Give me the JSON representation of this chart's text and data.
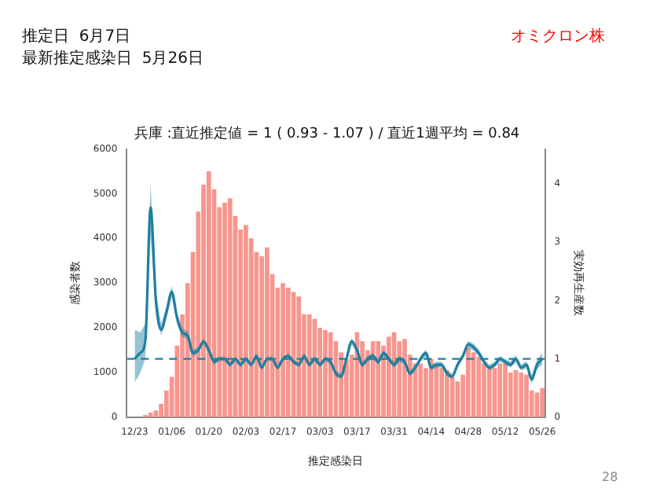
{
  "chart_data": {
    "type": "bar",
    "title": "兵庫 :直近推定値 = 1 ( 0.93 - 1.07 ) / 直近1週平均 = 0.84",
    "xlabel": "推定感染日",
    "ylabel": "感染者数",
    "y2label": "実効再生産数",
    "annotations": [
      "推定日  6月7日",
      "最新推定感染日  5月26日",
      "オミクロン株",
      "28"
    ],
    "categories": [
      null,
      "12/23",
      null,
      null,
      null,
      null,
      null,
      null,
      "01/06",
      null,
      null,
      null,
      null,
      null,
      null,
      "01/20",
      null,
      null,
      null,
      null,
      null,
      null,
      "02/03",
      null,
      null,
      null,
      null,
      null,
      null,
      "02/17",
      null,
      null,
      null,
      null,
      null,
      null,
      "03/03",
      null,
      null,
      null,
      null,
      null,
      null,
      "03/17",
      null,
      null,
      null,
      null,
      null,
      null,
      "03/31",
      null,
      null,
      null,
      null,
      null,
      null,
      "04/14",
      null,
      null,
      null,
      null,
      null,
      null,
      "04/28",
      null,
      null,
      null,
      null,
      null,
      null,
      "05/12",
      null,
      null,
      null,
      null,
      null,
      null,
      "05/26"
    ],
    "series": [
      {
        "color": "#f7968e",
        "values": [
          0,
          0,
          0,
          50,
          100,
          150,
          300,
          600,
          900,
          1600,
          2300,
          3000,
          3700,
          4600,
          5200,
          5500,
          5100,
          4700,
          4800,
          4900,
          4500,
          4200,
          4300,
          4000,
          3700,
          3600,
          3800,
          3200,
          2900,
          3000,
          2900,
          2800,
          2700,
          2300,
          2300,
          2200,
          2000,
          1950,
          1900,
          1700,
          1450,
          1300,
          1400,
          1900,
          1700,
          1500,
          1700,
          1700,
          1600,
          1800,
          1900,
          1700,
          1750,
          1400,
          1200,
          1200,
          1100,
          1300,
          1200,
          1100,
          1050,
          900,
          800,
          950,
          1550,
          1450,
          1350,
          1200,
          1150,
          1100,
          1200,
          1200,
          1000,
          1050,
          1000,
          950,
          600,
          550,
          650
        ]
      },
      {
        "type": "line",
        "axis": "y2",
        "color": "#1f7fa0",
        "values": [
          null,
          1.0,
          1.1,
          1.3,
          3.6,
          2.0,
          1.5,
          1.8,
          2.15,
          1.7,
          1.45,
          1.4,
          1.1,
          1.15,
          1.3,
          1.15,
          0.95,
          1.0,
          1.0,
          0.9,
          1.0,
          0.9,
          1.0,
          0.9,
          1.05,
          0.85,
          1.0,
          1.0,
          0.85,
          1.0,
          1.05,
          0.95,
          0.9,
          1.05,
          0.9,
          1.0,
          0.9,
          1.0,
          0.95,
          0.75,
          0.7,
          1.0,
          1.3,
          1.15,
          0.9,
          1.0,
          1.05,
          0.95,
          1.1,
          1.0,
          0.9,
          1.0,
          0.95,
          0.75,
          0.85,
          1.0,
          1.1,
          0.85,
          0.9,
          0.9,
          0.75,
          0.7,
          0.9,
          1.05,
          1.25,
          1.2,
          1.1,
          0.95,
          0.85,
          0.9,
          1.0,
          0.95,
          0.9,
          1.0,
          0.85,
          0.9,
          0.65,
          0.9,
          1.0
        ],
        "lower": [
          null,
          0.6,
          0.75,
          1.0,
          3.1,
          1.85,
          1.4,
          1.7,
          2.05,
          1.6,
          1.38,
          1.33,
          1.04,
          1.1,
          1.25,
          1.1,
          0.9,
          0.96,
          0.96,
          0.86,
          0.96,
          0.86,
          0.96,
          0.86,
          1.01,
          0.81,
          0.96,
          0.96,
          0.81,
          0.96,
          1.01,
          0.91,
          0.86,
          1.01,
          0.86,
          0.96,
          0.86,
          0.96,
          0.9,
          0.7,
          0.65,
          0.95,
          1.24,
          1.1,
          0.85,
          0.95,
          1.0,
          0.9,
          1.05,
          0.95,
          0.85,
          0.95,
          0.9,
          0.7,
          0.8,
          0.95,
          1.04,
          0.8,
          0.85,
          0.85,
          0.7,
          0.65,
          0.85,
          1.0,
          1.19,
          1.14,
          1.04,
          0.9,
          0.8,
          0.85,
          0.95,
          0.9,
          0.85,
          0.94,
          0.8,
          0.84,
          0.58,
          0.82,
          0.9
        ],
        "upper": [
          null,
          1.5,
          1.45,
          1.6,
          4.0,
          2.15,
          1.6,
          1.9,
          2.25,
          1.8,
          1.52,
          1.47,
          1.16,
          1.2,
          1.35,
          1.2,
          1.0,
          1.04,
          1.04,
          0.94,
          1.04,
          0.94,
          1.04,
          0.94,
          1.09,
          0.89,
          1.04,
          1.04,
          0.89,
          1.04,
          1.09,
          0.99,
          0.94,
          1.09,
          0.94,
          1.04,
          0.94,
          1.04,
          1.0,
          0.8,
          0.75,
          1.05,
          1.36,
          1.2,
          0.95,
          1.05,
          1.1,
          1.0,
          1.15,
          1.05,
          0.95,
          1.05,
          1.0,
          0.8,
          0.9,
          1.05,
          1.16,
          0.9,
          0.95,
          0.95,
          0.8,
          0.75,
          0.95,
          1.1,
          1.31,
          1.26,
          1.16,
          1.0,
          0.9,
          0.95,
          1.05,
          1.0,
          0.95,
          1.06,
          0.9,
          0.96,
          0.72,
          0.98,
          1.1
        ]
      }
    ],
    "ylim": [
      0,
      6000
    ],
    "yticks": [
      0,
      1000,
      2000,
      3000,
      4000,
      5000,
      6000
    ],
    "y2lim": [
      0,
      4.6
    ],
    "y2ticks": [
      0,
      1,
      2,
      3,
      4
    ],
    "ref_lines": [
      {
        "axis": "y2",
        "value": 1,
        "color": "#1f7fa0",
        "line_style": "dashed"
      }
    ],
    "grid": false,
    "legend": false
  }
}
